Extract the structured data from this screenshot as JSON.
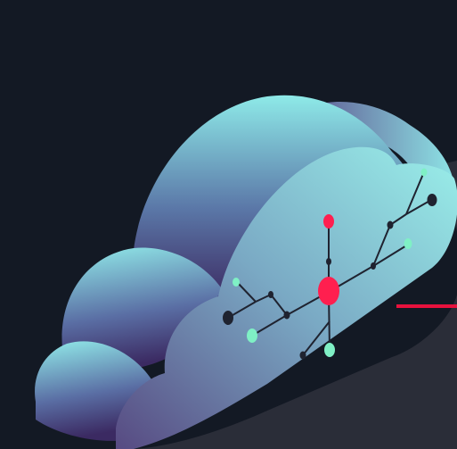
{
  "scene": {
    "illustration": "cloud-network",
    "colors": {
      "background": "#131924",
      "cloud_light": "#8eeae8",
      "cloud_mid": "#5fa4bd",
      "cloud_dark": "#3c2b63",
      "cloud_face_dark": "#5a4b84",
      "shadow": "#2a2d38",
      "node_dark": "#1f2330",
      "node_accent": "#ff1f4f",
      "node_teal": "#7ff0c5",
      "accent_line": "#e8113d"
    },
    "icons": [
      "cloud-icon",
      "network-node-icon"
    ]
  }
}
